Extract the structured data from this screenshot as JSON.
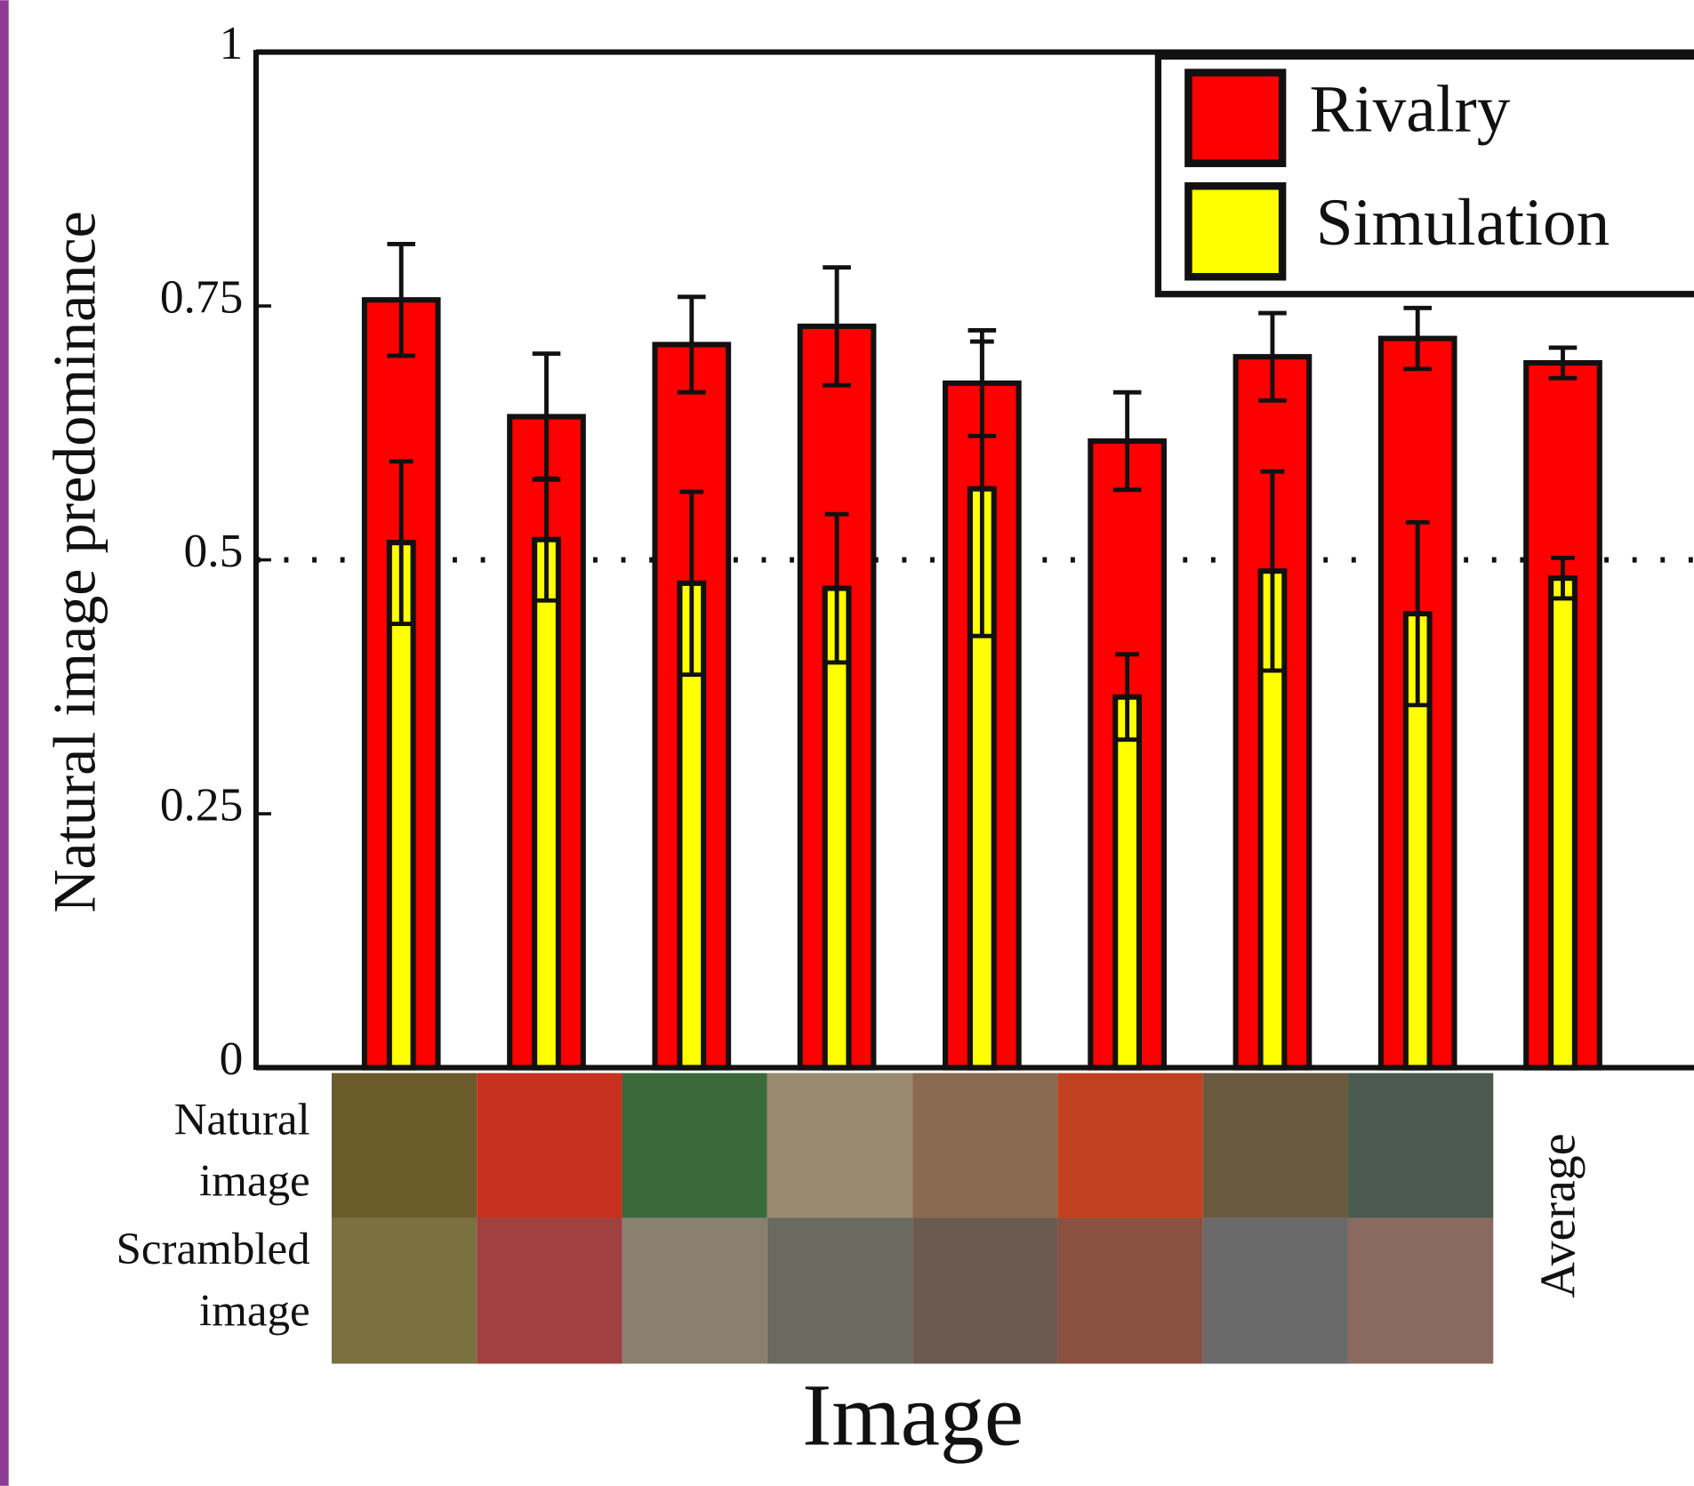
{
  "chart_data": {
    "type": "bar",
    "ylabel": "Natural image predominance",
    "xlabel": "Image",
    "categories": [
      null,
      null,
      null,
      null,
      null,
      null,
      null,
      null,
      "Average"
    ],
    "image_row_labels": [
      [
        "Natural",
        "image"
      ],
      [
        "Scrambled",
        "image"
      ]
    ],
    "series": [
      {
        "name": "Rivalry",
        "color": "#ff0000",
        "values": [
          0.756,
          0.641,
          0.712,
          0.73,
          0.674,
          0.617,
          0.7,
          0.718,
          0.694
        ],
        "errors": [
          0.055,
          0.062,
          0.047,
          0.058,
          0.052,
          0.048,
          0.043,
          0.03,
          0.015
        ]
      },
      {
        "name": "Simulation",
        "color": "#ffff00",
        "values": [
          0.517,
          0.52,
          0.477,
          0.472,
          0.57,
          0.365,
          0.489,
          0.447,
          0.482
        ],
        "errors": [
          0.08,
          0.06,
          0.09,
          0.073,
          0.145,
          0.042,
          0.098,
          0.09,
          0.02
        ]
      }
    ],
    "ylim": [
      0,
      1
    ],
    "yticks": [
      0,
      0.25,
      0.5,
      0.75,
      1
    ],
    "reference_line": 0.5,
    "legend": "upper right"
  }
}
